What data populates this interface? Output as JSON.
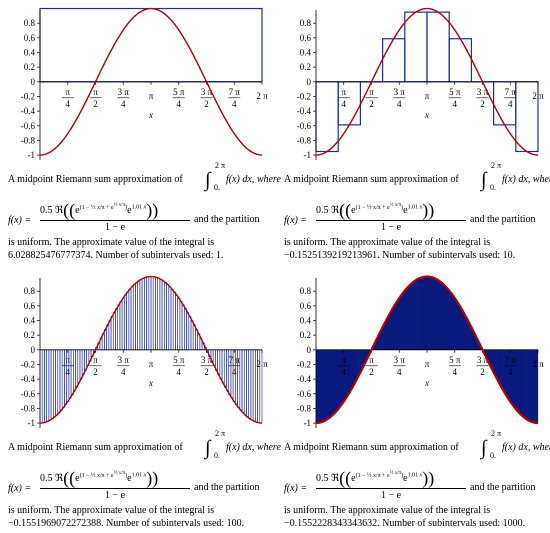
{
  "colors": {
    "curve": "#b30000",
    "rect_stroke": "#1f2f9a",
    "rect_fill": "#0b1a7e",
    "axis": "#000000"
  },
  "panels": [
    {
      "caption_prefix": "A midpoint Riemann sum approximation of",
      "integrand": "f(x) dx, where",
      "upper": "2 π",
      "lower": "0.",
      "fx": "f(x) =",
      "coef": "0.5 ℜ",
      "denominator": "1 − e",
      "tail": "and the partition",
      "line3": "is uniform.  The approximate value of the integral is",
      "line4": "6.028825476777374.  Number of subintervals used: 1."
    },
    {
      "caption_prefix": "A midpoint Riemann sum approximation of",
      "integrand": "f(x) dx, where",
      "upper": "2 π",
      "lower": "0.",
      "fx": "f(x) =",
      "coef": "0.5 ℜ",
      "denominator": "1 − e",
      "tail": "and the partition",
      "line3": "is uniform.  The approximate value of the integral is",
      "line4": "−0.1525139219213961.  Number of subintervals used: 10."
    },
    {
      "caption_prefix": "A midpoint Riemann sum approximation of",
      "integrand": "f(x) dx, where",
      "upper": "2 π",
      "lower": "0.",
      "fx": "f(x) =",
      "coef": "0.5 ℜ",
      "denominator": "1 − e",
      "tail": "and the partition",
      "line3": "is uniform.  The approximate value of the integral is",
      "line4": "−0.1551969072272388.  Number of subintervals used: 100."
    },
    {
      "caption_prefix": "A midpoint Riemann sum approximation of",
      "integrand": "f(x) dx, where",
      "upper": "2 π",
      "lower": "0.",
      "fx": "f(x) =",
      "coef": "0.5 ℜ",
      "denominator": "1 − e",
      "tail": "and the partition",
      "line3": "is uniform.  The approximate value of the integral is",
      "line4": "−0.1552228343343632.  Number of subintervals used: 1000."
    }
  ],
  "chart_data": [
    {
      "type": "line",
      "curve": "cos(x - π) mapped over [0, 2π]",
      "xlim": [
        0,
        6.2832
      ],
      "ylim": [
        -1,
        1
      ],
      "xlabel": "x",
      "yticks": [
        "0.8",
        "0.6",
        "0.4",
        "0.2",
        "0",
        "-0.2",
        "-0.4",
        "-0.6",
        "-0.8",
        "-1"
      ],
      "xticks": [
        {
          "num": "π",
          "den": "4"
        },
        {
          "num": "π",
          "den": "2"
        },
        {
          "num": "3 π",
          "den": "4"
        },
        {
          "num": "π",
          "den": ""
        },
        {
          "num": "5 π",
          "den": "4"
        },
        {
          "num": "3 π",
          "den": "2"
        },
        {
          "num": "7 π",
          "den": "4"
        },
        {
          "num": "2 π",
          "den": ""
        }
      ],
      "subintervals": 1
    },
    {
      "type": "line",
      "curve": "cos(x - π) mapped over [0, 2π]",
      "xlim": [
        0,
        6.2832
      ],
      "ylim": [
        -1,
        1
      ],
      "xlabel": "x",
      "yticks": [
        "0.8",
        "0.6",
        "0.4",
        "0.2",
        "0",
        "-0.2",
        "-0.4",
        "-0.6",
        "-0.8",
        "-1"
      ],
      "xticks": [
        {
          "num": "π",
          "den": "4"
        },
        {
          "num": "π",
          "den": "2"
        },
        {
          "num": "3 π",
          "den": "4"
        },
        {
          "num": "π",
          "den": ""
        },
        {
          "num": "5 π",
          "den": "4"
        },
        {
          "num": "3 π",
          "den": "2"
        },
        {
          "num": "7 π",
          "den": "4"
        },
        {
          "num": "2 π",
          "den": ""
        }
      ],
      "subintervals": 10
    },
    {
      "type": "line",
      "curve": "cos(x - π) mapped over [0, 2π]",
      "xlim": [
        0,
        6.2832
      ],
      "ylim": [
        -1,
        1
      ],
      "xlabel": "x",
      "yticks": [
        "0.8",
        "0.6",
        "0.4",
        "0.2",
        "0",
        "-0.2",
        "-0.4",
        "-0.6",
        "-0.8",
        "-1"
      ],
      "xticks": [
        {
          "num": "π",
          "den": "4"
        },
        {
          "num": "π",
          "den": "2"
        },
        {
          "num": "3 π",
          "den": "4"
        },
        {
          "num": "π",
          "den": ""
        },
        {
          "num": "5 π",
          "den": "4"
        },
        {
          "num": "3 π",
          "den": "2"
        },
        {
          "num": "7 π",
          "den": "4"
        },
        {
          "num": "2 π",
          "den": ""
        }
      ],
      "subintervals": 100
    },
    {
      "type": "line",
      "curve": "cos(x - π) mapped over [0, 2π]",
      "xlim": [
        0,
        6.2832
      ],
      "ylim": [
        -1,
        1
      ],
      "xlabel": "x",
      "yticks": [
        "0.8",
        "0.6",
        "0.4",
        "0.2",
        "0",
        "-0.2",
        "-0.4",
        "-0.6",
        "-0.8",
        "-1"
      ],
      "xticks": [
        {
          "num": "π",
          "den": "4"
        },
        {
          "num": "π",
          "den": "2"
        },
        {
          "num": "3 π",
          "den": "4"
        },
        {
          "num": "π",
          "den": ""
        },
        {
          "num": "5 π",
          "den": "4"
        },
        {
          "num": "3 π",
          "den": "2"
        },
        {
          "num": "7 π",
          "den": "4"
        },
        {
          "num": "2 π",
          "den": ""
        }
      ],
      "subintervals": 1000
    }
  ]
}
